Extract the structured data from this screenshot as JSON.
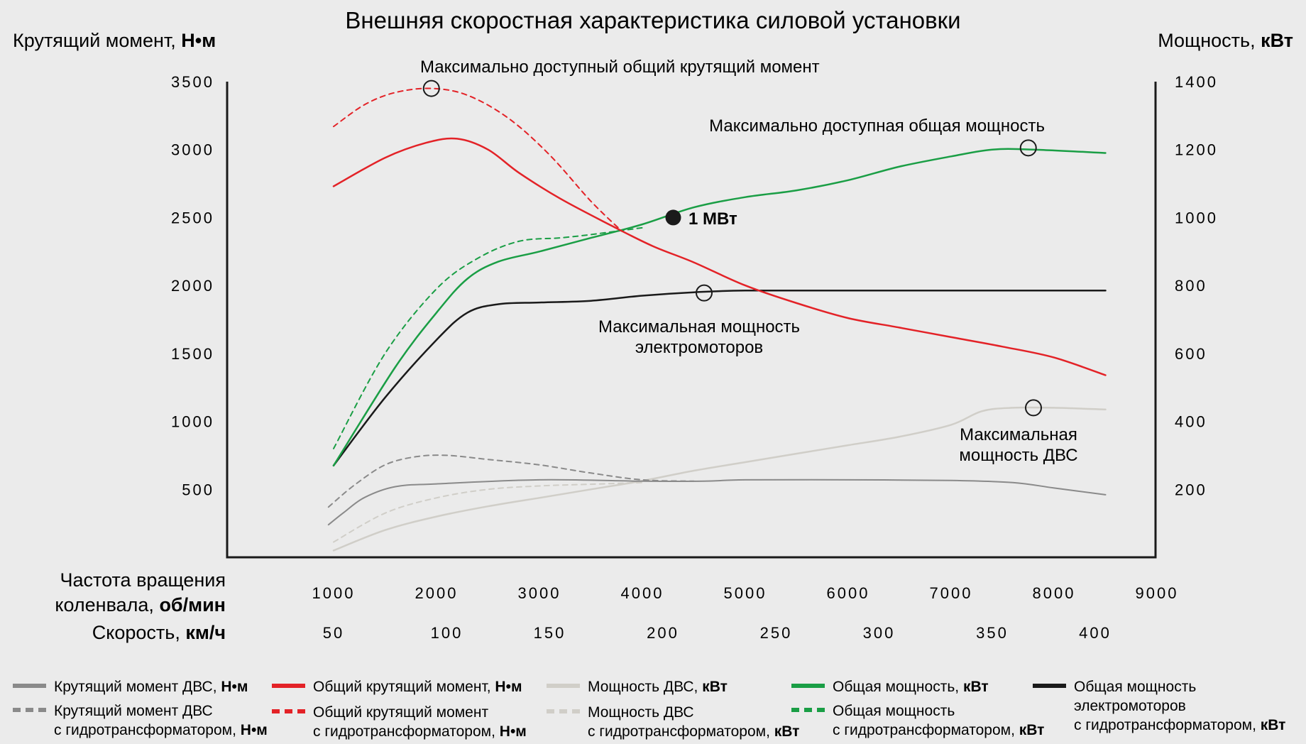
{
  "chart_data": {
    "type": "line",
    "title": "Внешняя скоростная характеристика силовой установки",
    "y_left": {
      "label": "Крутящий момент, ",
      "unit": "Н•м",
      "range": [
        0,
        3500
      ],
      "ticks": [
        "500",
        "1000",
        "1500",
        "2000",
        "2500",
        "3000",
        "3500"
      ]
    },
    "y_right": {
      "label": "Мощность, ",
      "unit": "кВт",
      "range": [
        0,
        1400
      ],
      "ticks": [
        "200",
        "400",
        "600",
        "800",
        "1000",
        "1200",
        "1400"
      ]
    },
    "x_rpm": {
      "label_line1": "Частота вращения",
      "label_line2": "коленвала, ",
      "unit": "об/мин",
      "range": [
        0,
        9000
      ],
      "ticks": [
        "1000",
        "2000",
        "3000",
        "4000",
        "5000",
        "6000",
        "7000",
        "8000",
        "9000"
      ]
    },
    "x_speed": {
      "label": "Скорость, ",
      "unit": "км/ч",
      "ticks": [
        {
          "rpm": 1000,
          "label": "50"
        },
        {
          "rpm": 2100,
          "label": "100"
        },
        {
          "rpm": 3100,
          "label": "150"
        },
        {
          "rpm": 4200,
          "label": "200"
        },
        {
          "rpm": 5300,
          "label": "250"
        },
        {
          "rpm": 6300,
          "label": "300"
        },
        {
          "rpm": 7400,
          "label": "350"
        },
        {
          "rpm": 8400,
          "label": "400"
        }
      ]
    },
    "grid": false,
    "legend_position": "bottom",
    "series": [
      {
        "name": "Крутящий момент ДВС, ",
        "unit": "Н•м",
        "axis": "left",
        "color": "#8a8a8a",
        "dash": false,
        "width": 2,
        "points": [
          [
            950,
            240
          ],
          [
            1100,
            330
          ],
          [
            1300,
            440
          ],
          [
            1600,
            520
          ],
          [
            2000,
            540
          ],
          [
            3000,
            570
          ],
          [
            4000,
            560
          ],
          [
            4600,
            560
          ],
          [
            5000,
            570
          ],
          [
            6000,
            570
          ],
          [
            7000,
            565
          ],
          [
            7600,
            550
          ],
          [
            8000,
            510
          ],
          [
            8500,
            460
          ]
        ]
      },
      {
        "name": "Крутящий момент ДВС с гидротрансформатором, ",
        "unit": "Н•м",
        "axis": "left",
        "color": "#8a8a8a",
        "dash": true,
        "width": 2,
        "points": [
          [
            950,
            370
          ],
          [
            1200,
            530
          ],
          [
            1500,
            680
          ],
          [
            1800,
            740
          ],
          [
            2100,
            750
          ],
          [
            2500,
            720
          ],
          [
            3000,
            680
          ],
          [
            3500,
            620
          ],
          [
            4000,
            570
          ],
          [
            4500,
            560
          ]
        ]
      },
      {
        "name": "Общий крутящий момент, ",
        "unit": "Н•м",
        "axis": "left",
        "color": "#e32227",
        "dash": false,
        "width": 2.5,
        "points": [
          [
            1000,
            2730
          ],
          [
            1500,
            2940
          ],
          [
            1900,
            3050
          ],
          [
            2200,
            3080
          ],
          [
            2500,
            3000
          ],
          [
            2800,
            2830
          ],
          [
            3200,
            2640
          ],
          [
            3700,
            2440
          ],
          [
            4100,
            2290
          ],
          [
            4500,
            2170
          ],
          [
            5000,
            2000
          ],
          [
            5500,
            1870
          ],
          [
            6000,
            1760
          ],
          [
            6500,
            1690
          ],
          [
            7000,
            1620
          ],
          [
            7500,
            1550
          ],
          [
            8000,
            1470
          ],
          [
            8500,
            1340
          ]
        ]
      },
      {
        "name": "Общий крутящий момент с гидротрансформатором, ",
        "unit": "Н•м",
        "axis": "left",
        "color": "#e32227",
        "dash": true,
        "width": 2,
        "points": [
          [
            1000,
            3170
          ],
          [
            1300,
            3330
          ],
          [
            1600,
            3420
          ],
          [
            1950,
            3450
          ],
          [
            2300,
            3400
          ],
          [
            2700,
            3230
          ],
          [
            3100,
            2960
          ],
          [
            3500,
            2620
          ],
          [
            3800,
            2400
          ]
        ]
      },
      {
        "name": "Мощность ДВС, ",
        "unit": "кВт",
        "axis": "right",
        "color": "#d0cec8",
        "dash": false,
        "width": 2.5,
        "points": [
          [
            1000,
            20
          ],
          [
            1500,
            80
          ],
          [
            2000,
            120
          ],
          [
            2500,
            150
          ],
          [
            3000,
            175
          ],
          [
            3500,
            200
          ],
          [
            4000,
            225
          ],
          [
            4500,
            255
          ],
          [
            5000,
            280
          ],
          [
            5500,
            305
          ],
          [
            6000,
            330
          ],
          [
            6500,
            355
          ],
          [
            7000,
            390
          ],
          [
            7300,
            430
          ],
          [
            7600,
            440
          ],
          [
            8000,
            440
          ],
          [
            8500,
            435
          ]
        ]
      },
      {
        "name": "Мощность ДВС с гидротрансформатором, ",
        "unit": "кВт",
        "axis": "right",
        "color": "#d0cec8",
        "dash": true,
        "width": 2,
        "points": [
          [
            1000,
            45
          ],
          [
            1500,
            130
          ],
          [
            2000,
            175
          ],
          [
            2500,
            200
          ],
          [
            3000,
            210
          ],
          [
            3500,
            215
          ],
          [
            4000,
            220
          ]
        ]
      },
      {
        "name": "Общая мощность, ",
        "unit": "кВт",
        "axis": "right",
        "color": "#1a9e45",
        "dash": false,
        "width": 2.5,
        "points": [
          [
            1000,
            270
          ],
          [
            1600,
            560
          ],
          [
            2000,
            720
          ],
          [
            2300,
            820
          ],
          [
            2600,
            870
          ],
          [
            3000,
            900
          ],
          [
            3500,
            940
          ],
          [
            4000,
            980
          ],
          [
            4500,
            1030
          ],
          [
            5000,
            1060
          ],
          [
            5500,
            1080
          ],
          [
            6000,
            1110
          ],
          [
            6500,
            1150
          ],
          [
            7000,
            1180
          ],
          [
            7400,
            1200
          ],
          [
            7800,
            1200
          ],
          [
            8500,
            1190
          ]
        ]
      },
      {
        "name": "Общая мощность с гидротрансформатором, ",
        "unit": "кВт",
        "axis": "right",
        "color": "#1a9e45",
        "dash": true,
        "width": 2,
        "points": [
          [
            1000,
            320
          ],
          [
            1500,
            600
          ],
          [
            2000,
            790
          ],
          [
            2400,
            880
          ],
          [
            2800,
            930
          ],
          [
            3200,
            940
          ],
          [
            3500,
            950
          ],
          [
            4000,
            970
          ]
        ]
      },
      {
        "name": "Общая мощность электромоторов с гидротрансформатором, ",
        "unit": "кВт",
        "axis": "right",
        "color": "#1a1a1a",
        "dash": false,
        "width": 2.5,
        "points": [
          [
            1000,
            270
          ],
          [
            1500,
            470
          ],
          [
            2000,
            640
          ],
          [
            2300,
            720
          ],
          [
            2600,
            745
          ],
          [
            3000,
            750
          ],
          [
            3500,
            755
          ],
          [
            4000,
            770
          ],
          [
            4500,
            780
          ],
          [
            5000,
            785
          ],
          [
            6000,
            785
          ],
          [
            7000,
            785
          ],
          [
            8500,
            785
          ]
        ]
      }
    ],
    "annotations": [
      {
        "text": "Максимально доступный общий крутящий момент",
        "rpm": 1950,
        "value": 3450,
        "axis": "left",
        "marker": "open"
      },
      {
        "text": "Максимально доступная общая мощность",
        "rpm": 7750,
        "value": 1205,
        "axis": "right",
        "marker": "open"
      },
      {
        "text": "1 МВт",
        "rpm": 4300,
        "value": 1000,
        "axis": "right",
        "marker": "filled"
      },
      {
        "lines": [
          "Максимальная мощность",
          "электромоторов"
        ],
        "rpm": 4600,
        "value": 778,
        "axis": "right",
        "marker": "open"
      },
      {
        "lines": [
          "Максимальная",
          "мощность ДВС"
        ],
        "rpm": 7800,
        "value": 440,
        "axis": "right",
        "marker": "open"
      }
    ],
    "legend": [
      {
        "series": 0,
        "line1": "Крутящий момент ДВС, ",
        "unit": "Н•м"
      },
      {
        "series": 1,
        "line1": "Крутящий момент ДВС",
        "line2": "с гидротрансформатором, ",
        "unit": "Н•м"
      },
      {
        "series": 2,
        "line1": "Общий крутящий момент, ",
        "unit": "Н•м"
      },
      {
        "series": 3,
        "line1": "Общий крутящий момент",
        "line2": "с гидротрансформатором, ",
        "unit": "Н•м"
      },
      {
        "series": 4,
        "line1": "Мощность ДВС, ",
        "unit": "кВт"
      },
      {
        "series": 5,
        "line1": "Мощность ДВС",
        "line2": "с гидротрансформатором, ",
        "unit": "кВт"
      },
      {
        "series": 6,
        "line1": "Общая мощность, ",
        "unit": "кВт"
      },
      {
        "series": 7,
        "line1": "Общая мощность",
        "line2": "с гидротрансформатором, ",
        "unit": "кВт"
      },
      {
        "series": 8,
        "line1": "Общая мощность",
        "line2": "электромоторов",
        "line3": "с гидротрансформатором, ",
        "unit": "кВт"
      }
    ]
  }
}
